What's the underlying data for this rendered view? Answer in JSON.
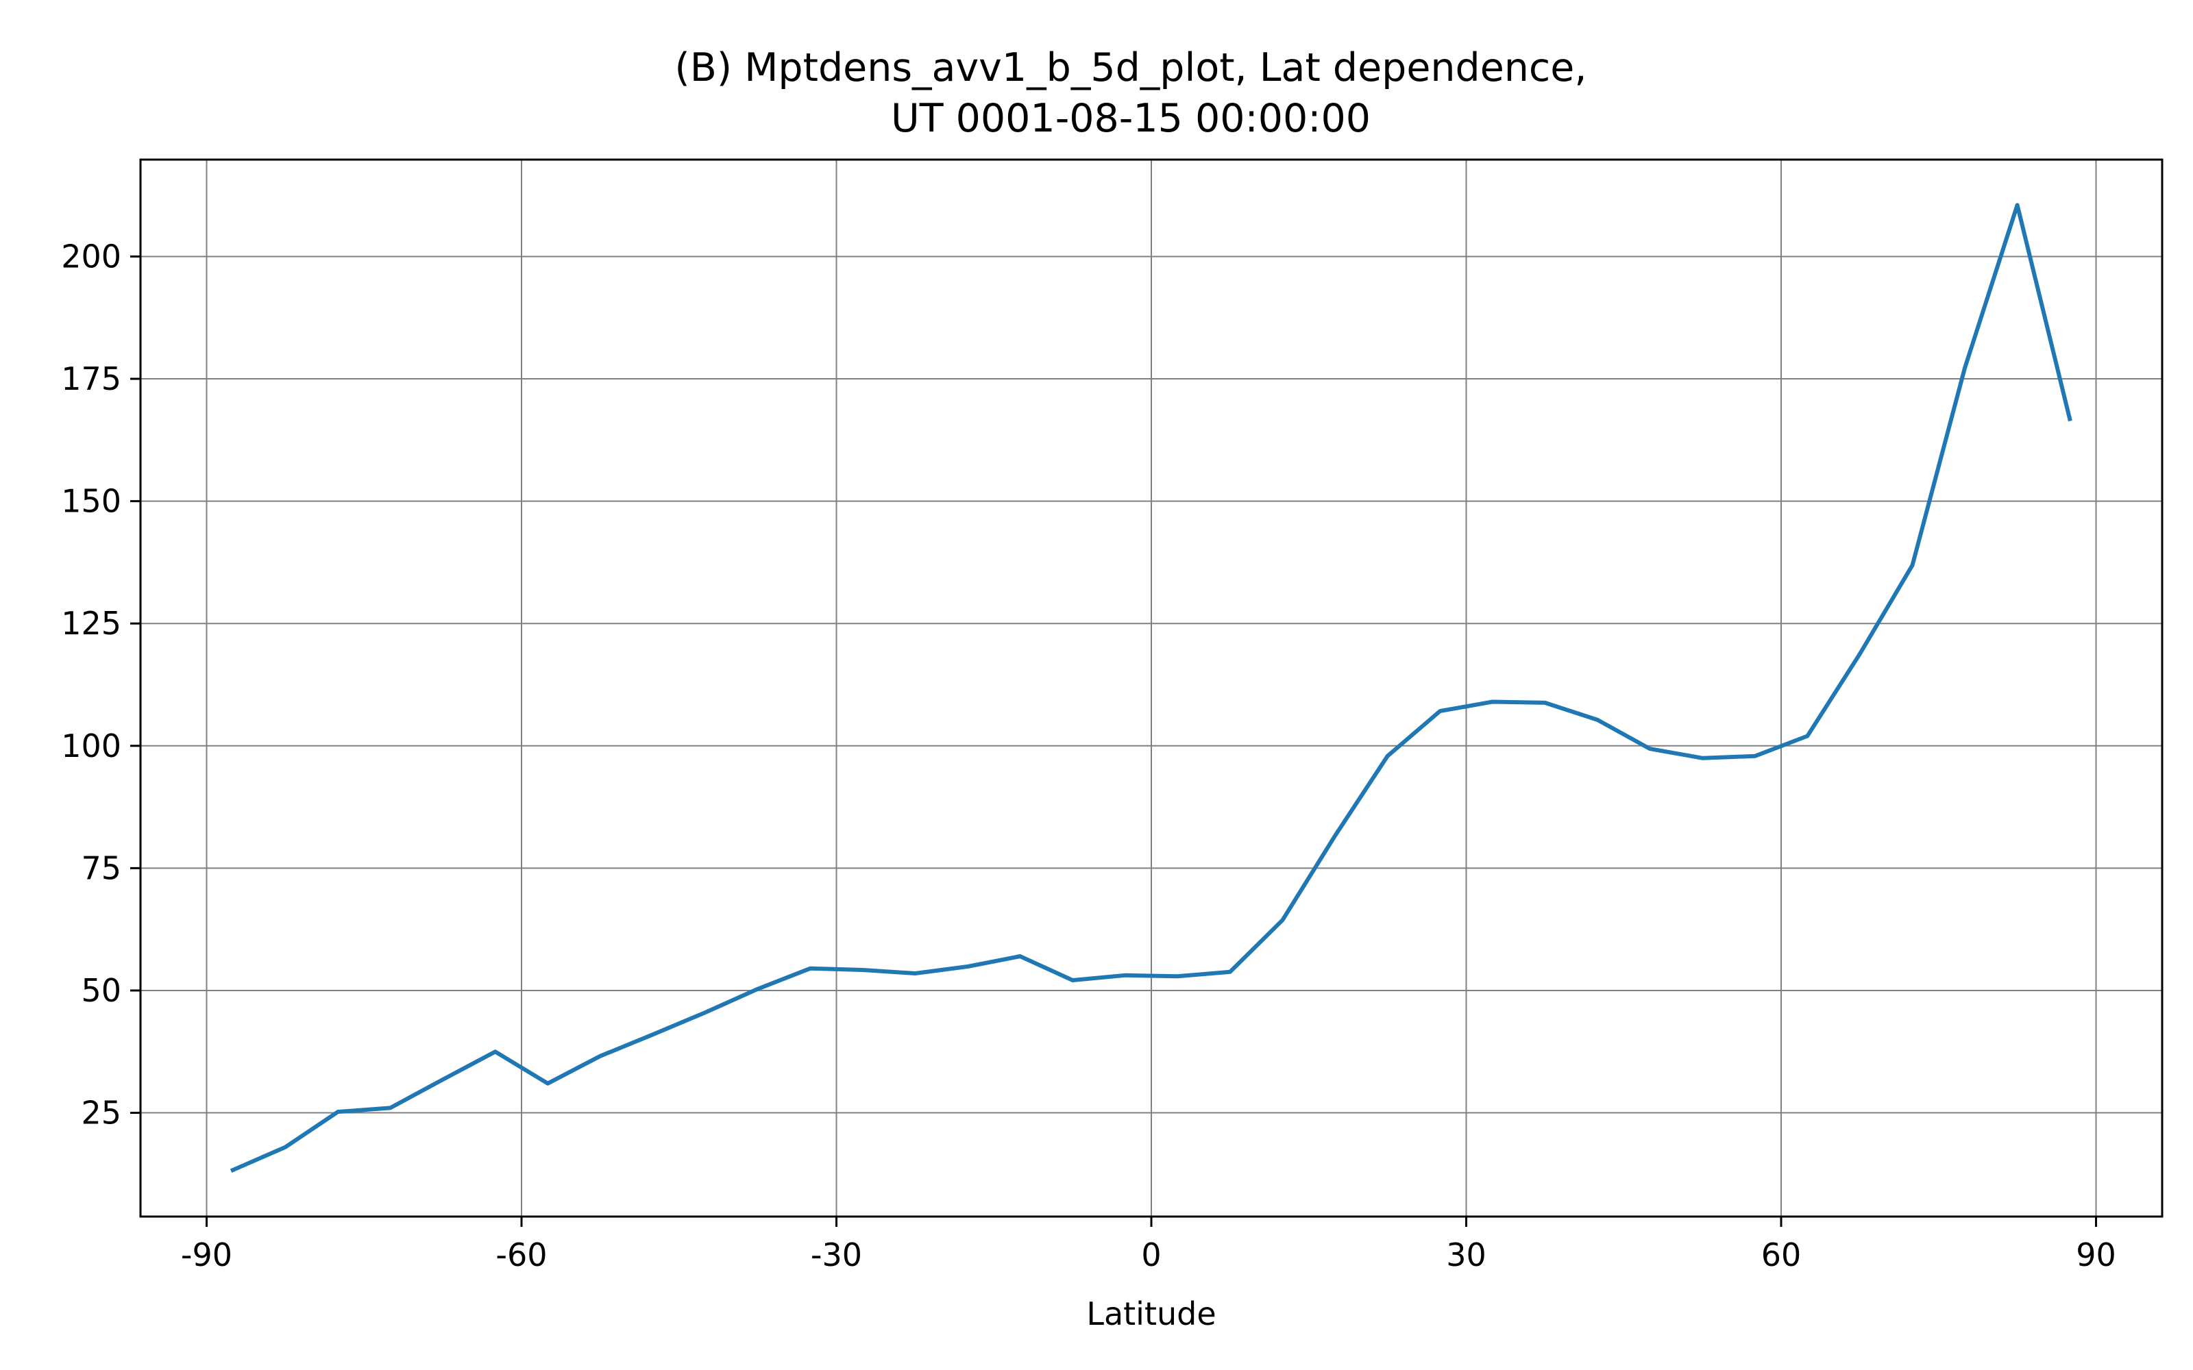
{
  "chart_data": {
    "type": "line",
    "title_lines": [
      "(B) Mptdens_avv1_b_5d_plot, Lat dependence,",
      "UT 0001-08-15 00:00:00"
    ],
    "xlabel": "Latitude",
    "ylabel": "",
    "xlim": [
      -96.3,
      96.3
    ],
    "ylim": [
      3.8,
      219.8
    ],
    "x_ticks": [
      -90,
      -60,
      -30,
      0,
      30,
      60,
      90
    ],
    "x_tick_labels": [
      "-90",
      "-60",
      "-30",
      "0",
      "30",
      "60",
      "90"
    ],
    "y_ticks": [
      25,
      50,
      75,
      100,
      125,
      150,
      175,
      200
    ],
    "y_tick_labels": [
      "25",
      "50",
      "75",
      "100",
      "125",
      "150",
      "175",
      "200"
    ],
    "grid": true,
    "colors": {
      "line": "#1f77b4",
      "grid": "#808080",
      "axes": "#000000"
    },
    "series": [
      {
        "x": [
          -87.5,
          -82.5,
          -77.5,
          -72.5,
          -67.5,
          -62.5,
          -57.5,
          -52.5,
          -47.5,
          -42.5,
          -37.5,
          -32.5,
          -27.5,
          -22.5,
          -17.5,
          -12.5,
          -7.5,
          -2.5,
          2.5,
          7.5,
          12.5,
          17.5,
          22.5,
          27.5,
          32.5,
          37.5,
          42.5,
          47.5,
          52.5,
          57.5,
          62.5,
          67.5,
          72.5,
          77.5,
          82.5,
          87.5
        ],
        "values": [
          13.3,
          18.0,
          25.2,
          26.0,
          31.8,
          37.5,
          31.0,
          36.6,
          41.0,
          45.5,
          50.3,
          54.5,
          54.2,
          53.5,
          54.9,
          57.0,
          52.1,
          53.1,
          52.9,
          53.8,
          64.4,
          81.6,
          97.9,
          107.1,
          109.0,
          108.8,
          105.3,
          99.4,
          97.5,
          97.9,
          102.0,
          118.8,
          136.9,
          177.2,
          210.5,
          166.8
        ]
      }
    ]
  }
}
